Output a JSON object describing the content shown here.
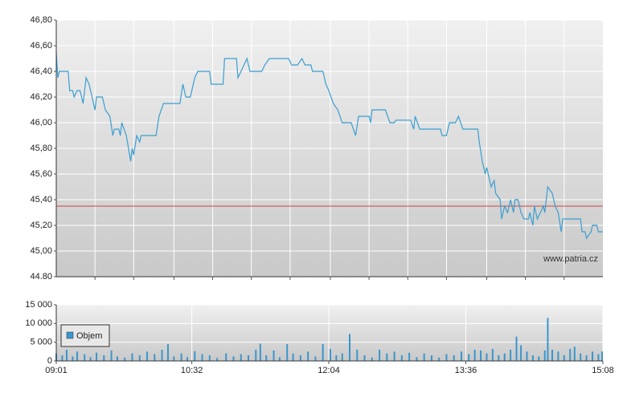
{
  "chart_data": [
    {
      "type": "line",
      "annotation": "www.patria.cz",
      "x": [
        "09:01",
        "09:02",
        "09:03",
        "09:09",
        "09:10",
        "09:12",
        "09:13",
        "09:15",
        "09:17",
        "09:19",
        "09:21",
        "09:23",
        "09:25",
        "09:27",
        "09:28",
        "09:32",
        "09:34",
        "09:37",
        "09:39",
        "09:40",
        "09:43",
        "09:44",
        "09:45",
        "09:48",
        "09:51",
        "09:52",
        "09:53",
        "09:55",
        "09:57",
        "09:58",
        "10:08",
        "10:10",
        "10:13",
        "10:24",
        "10:26",
        "10:28",
        "10:31",
        "10:34",
        "10:36",
        "10:44",
        "10:45",
        "10:53",
        "10:54",
        "11:02",
        "11:03",
        "11:05",
        "11:09",
        "11:11",
        "11:19",
        "11:21",
        "11:24",
        "11:37",
        "11:39",
        "11:43",
        "11:46",
        "11:48",
        "11:52",
        "11:53",
        "12:00",
        "12:02",
        "12:04",
        "12:07",
        "12:10",
        "12:13",
        "12:19",
        "12:22",
        "12:24",
        "12:31",
        "12:32",
        "12:33",
        "12:42",
        "12:45",
        "12:48",
        "12:49",
        "12:59",
        "13:01",
        "13:02",
        "13:05",
        "13:19",
        "13:20",
        "13:23",
        "13:25",
        "13:29",
        "13:31",
        "13:34",
        "13:44",
        "13:45",
        "13:47",
        "13:48",
        "13:49",
        "13:50",
        "13:51",
        "13:53",
        "13:55",
        "13:56",
        "13:59",
        "14:00",
        "14:02",
        "14:04",
        "14:06",
        "14:08",
        "14:09",
        "14:11",
        "14:13",
        "14:15",
        "14:18",
        "14:19",
        "14:21",
        "14:22",
        "14:24",
        "14:26",
        "14:28",
        "14:29",
        "14:31",
        "14:34",
        "14:36",
        "14:38",
        "14:40",
        "14:41",
        "14:53",
        "14:54",
        "14:56",
        "14:57",
        "15:00",
        "15:01",
        "15:04",
        "15:05",
        "15:08"
      ],
      "series": [
        {
          "color": "#3a9fd0",
          "values": [
            46.55,
            46.35,
            46.4,
            46.4,
            46.25,
            46.25,
            46.2,
            46.25,
            46.25,
            46.15,
            46.35,
            46.3,
            46.2,
            46.1,
            46.2,
            46.2,
            46.1,
            46.05,
            45.9,
            45.95,
            45.95,
            45.9,
            46.0,
            45.9,
            45.7,
            45.8,
            45.75,
            45.9,
            45.85,
            45.9,
            45.9,
            46.05,
            46.15,
            46.15,
            46.3,
            46.2,
            46.2,
            46.35,
            46.4,
            46.4,
            46.3,
            46.3,
            46.5,
            46.5,
            46.35,
            46.4,
            46.5,
            46.4,
            46.4,
            46.45,
            46.5,
            46.5,
            46.45,
            46.45,
            46.5,
            46.45,
            46.45,
            46.4,
            46.4,
            46.3,
            46.25,
            46.15,
            46.1,
            46.0,
            46.0,
            45.9,
            46.05,
            46.05,
            46.0,
            46.1,
            46.1,
            46.0,
            46.0,
            46.02,
            46.02,
            45.95,
            46.05,
            45.95,
            45.95,
            45.9,
            45.9,
            46.0,
            46.0,
            46.05,
            45.95,
            45.95,
            45.85,
            45.7,
            45.65,
            45.6,
            45.65,
            45.6,
            45.5,
            45.55,
            45.45,
            45.4,
            45.25,
            45.35,
            45.3,
            45.4,
            45.3,
            45.4,
            45.4,
            45.3,
            45.25,
            45.25,
            45.3,
            45.2,
            45.35,
            45.25,
            45.3,
            45.35,
            45.3,
            45.5,
            45.45,
            45.35,
            45.3,
            45.15,
            45.25,
            45.25,
            45.15,
            45.15,
            45.1,
            45.15,
            45.2,
            45.2,
            45.15,
            45.15
          ]
        }
      ],
      "xlim": [
        "09:01",
        "15:08"
      ],
      "xgrid": [
        "09:27",
        "09:53",
        "10:20",
        "10:46",
        "11:12",
        "11:38",
        "12:05",
        "12:31",
        "12:57",
        "13:23",
        "13:50",
        "14:16",
        "14:42"
      ],
      "ylim": [
        44.8,
        46.8
      ],
      "yticks": [
        {
          "value": 44.8,
          "label": "44.80"
        },
        {
          "value": 45.0,
          "label": "45,00"
        },
        {
          "value": 45.2,
          "label": "45,20"
        },
        {
          "value": 45.4,
          "label": "45,40"
        },
        {
          "value": 45.6,
          "label": "45,60"
        },
        {
          "value": 45.8,
          "label": "45,80"
        },
        {
          "value": 46.0,
          "label": "46,00"
        },
        {
          "value": 46.2,
          "label": "46,20"
        },
        {
          "value": 46.4,
          "label": "46,40"
        },
        {
          "value": 46.6,
          "label": "46,60"
        },
        {
          "value": 46.8,
          "label": "46,80"
        }
      ],
      "reference_value": 45.35,
      "reference_color": "#d04040",
      "grid": true
    },
    {
      "type": "bar",
      "x": [
        "09:01",
        "09:05",
        "09:08",
        "09:12",
        "09:15",
        "09:20",
        "09:24",
        "09:28",
        "09:33",
        "09:38",
        "09:42",
        "09:47",
        "09:52",
        "09:57",
        "10:02",
        "10:07",
        "10:12",
        "10:16",
        "10:20",
        "10:25",
        "10:29",
        "10:34",
        "10:39",
        "10:44",
        "10:49",
        "10:55",
        "11:00",
        "11:05",
        "11:10",
        "11:15",
        "11:18",
        "11:22",
        "11:27",
        "11:31",
        "11:36",
        "11:40",
        "11:45",
        "11:50",
        "11:55",
        "12:00",
        "12:05",
        "12:09",
        "12:13",
        "12:18",
        "12:23",
        "12:28",
        "12:33",
        "12:38",
        "12:43",
        "12:48",
        "12:53",
        "12:58",
        "13:03",
        "13:08",
        "13:13",
        "13:18",
        "13:23",
        "13:28",
        "13:33",
        "13:38",
        "13:42",
        "13:46",
        "13:50",
        "13:54",
        "13:58",
        "14:02",
        "14:06",
        "14:10",
        "14:13",
        "14:17",
        "14:21",
        "14:25",
        "14:29",
        "14:31",
        "14:34",
        "14:38",
        "14:42",
        "14:46",
        "14:49",
        "14:53",
        "14:57",
        "15:01",
        "15:05",
        "15:08"
      ],
      "series": [
        {
          "name": "Objem",
          "color": "#3a96cc",
          "values": [
            2000,
            1500,
            3000,
            1200,
            2500,
            1800,
            1000,
            2200,
            1500,
            2800,
            1200,
            900,
            2000,
            1500,
            2500,
            1800,
            3000,
            4500,
            1200,
            2000,
            1000,
            2600,
            1800,
            1500,
            800,
            2000,
            1200,
            1800,
            1500,
            3000,
            4600,
            1500,
            2800,
            1000,
            4500,
            2000,
            1500,
            2500,
            1200,
            4500,
            3200,
            1500,
            2000,
            7200,
            3000,
            1500,
            900,
            3000,
            2000,
            2500,
            1500,
            2200,
            1000,
            2000,
            1500,
            900,
            1800,
            1500,
            2500,
            1800,
            3000,
            2800,
            2000,
            3200,
            1500,
            2000,
            3000,
            6500,
            4200,
            2500,
            1500,
            1200,
            2800,
            11500,
            3000,
            2500,
            1500,
            3200,
            3800,
            2000,
            1500,
            2500,
            1800,
            2500
          ]
        }
      ],
      "xlim": [
        "09:01",
        "15:08"
      ],
      "xticks": [
        "09:01",
        "10:32",
        "12:04",
        "13:36",
        "15:08"
      ],
      "ylim": [
        0,
        15000
      ],
      "yticks": [
        0,
        {
          "value": 5000,
          "label": "5 000"
        },
        {
          "value": 10000,
          "label": "10 000"
        },
        {
          "value": 15000,
          "label": "15 000"
        }
      ],
      "grid": true
    }
  ]
}
